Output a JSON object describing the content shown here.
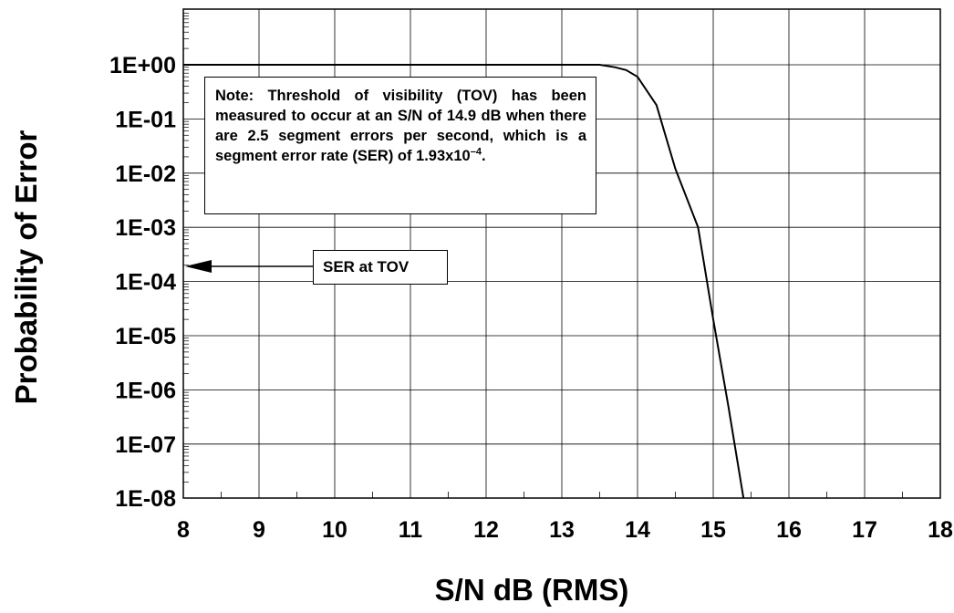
{
  "chart_data": {
    "type": "line",
    "xlabel": "S/N dB (RMS)",
    "ylabel": "Probability of Error",
    "xlim": [
      8,
      18
    ],
    "ylim": [
      1e-08,
      10
    ],
    "yscale": "log",
    "grid": true,
    "x_ticks": [
      "8",
      "9",
      "10",
      "11",
      "12",
      "13",
      "14",
      "15",
      "16",
      "17",
      "18"
    ],
    "y_ticks": [
      "1E+00",
      "1E-01",
      "1E-02",
      "1E-03",
      "1E-04",
      "1E-05",
      "1E-06",
      "1E-07",
      "1E-08"
    ],
    "series": [
      {
        "x": [
          8,
          13.5,
          13.7,
          13.85,
          14.0,
          14.25,
          14.5,
          14.8,
          15.0,
          15.2,
          15.4
        ],
        "y": [
          1.0,
          1.0,
          0.9,
          0.8,
          0.6,
          0.18,
          0.012,
          0.001,
          2e-05,
          5e-07,
          1e-08
        ]
      }
    ],
    "note": {
      "text": "Note: Threshold of visibility (TOV) has been measured to occur at an S/N of 14.9 dB when there are 2.5 segment errors per second, which is a segment error rate (SER) of 1.93x10",
      "superscript": "–4",
      "end": "."
    },
    "annotation": {
      "text": "SER at TOV",
      "y": 0.000193
    }
  }
}
